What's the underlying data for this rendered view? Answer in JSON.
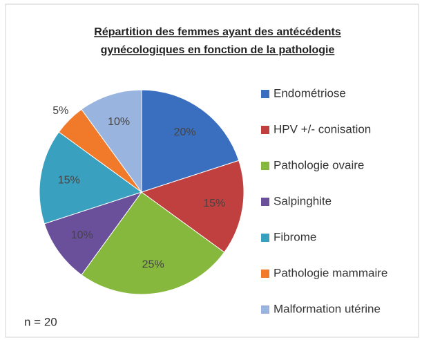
{
  "chart_data": {
    "type": "pie",
    "title": [
      "Répartition des femmes ayant des antécédents",
      "gynécologiques en fonction de la pathologie"
    ],
    "categories": [
      "Endométriose",
      "HPV +/- conisation",
      "Pathologie ovaire",
      "Salpinghite",
      "Fibrome",
      "Pathologie mammaire",
      "Malformation utérine"
    ],
    "values": [
      20,
      15,
      25,
      10,
      15,
      5,
      10
    ],
    "value_labels": [
      "20%",
      "15%",
      "25%",
      "10%",
      "15%",
      "5%",
      "10%"
    ],
    "colors": [
      "#3a6fbf",
      "#c0403f",
      "#86b83e",
      "#6a4f9a",
      "#3aa0c0",
      "#f07a2a",
      "#9ab4e0"
    ],
    "annotation": "n = 20"
  }
}
